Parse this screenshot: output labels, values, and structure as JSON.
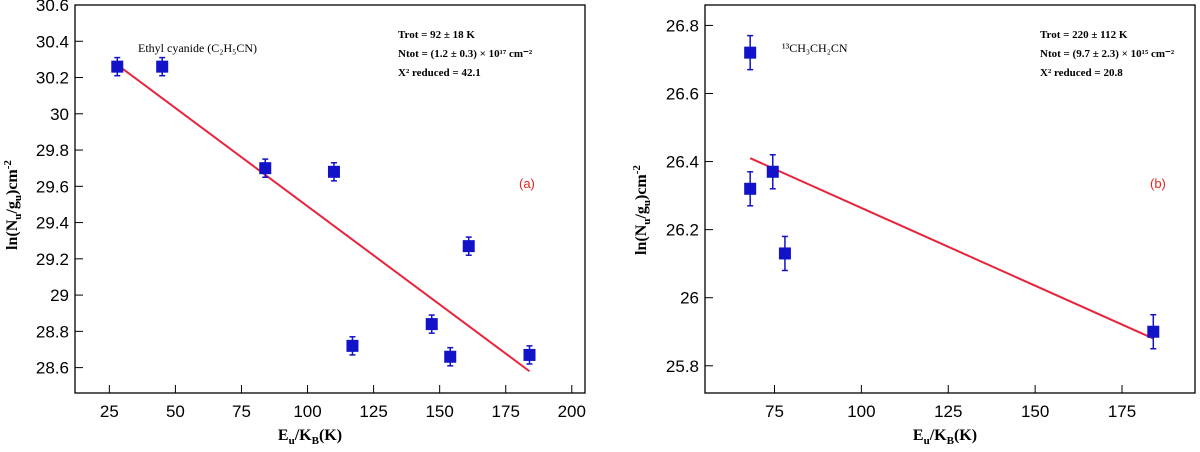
{
  "chart_data": [
    {
      "type": "scatter",
      "panel_label": "(a)",
      "species_label": "Ethyl cyanide (C₂H₅CN)",
      "fit_text": [
        "Trot =  92 ± 18  K",
        "Ntot = (1.2 ± 0.3) × 10¹⁷ cm⁻²",
        "X² reduced = 42.1"
      ],
      "xlabel": "Eu/KB(K)",
      "ylabel": "ln(Nu/gu)cm⁻²",
      "xlim": [
        12,
        205
      ],
      "ylim": [
        28.46,
        30.6
      ],
      "xticks": [
        25,
        50,
        75,
        100,
        125,
        150,
        175,
        200
      ],
      "yticks": [
        28.6,
        28.8,
        29,
        29.2,
        29.4,
        29.6,
        29.8,
        30,
        30.2,
        30.4,
        30.6
      ],
      "xtick_labels": [
        "25",
        "50",
        "75",
        "100",
        "125",
        "150",
        "175",
        "200"
      ],
      "ytick_labels": [
        "28.6",
        "28.8",
        "29",
        "29.2",
        "29.4",
        "29.6",
        "29.8",
        "30",
        "30.2",
        "30.4",
        "30.6"
      ],
      "points": [
        {
          "x": 28,
          "y": 30.26,
          "err": 0.05
        },
        {
          "x": 45,
          "y": 30.26,
          "err": 0.05
        },
        {
          "x": 84,
          "y": 29.7,
          "err": 0.05
        },
        {
          "x": 110,
          "y": 29.68,
          "err": 0.05
        },
        {
          "x": 117,
          "y": 28.72,
          "err": 0.05
        },
        {
          "x": 147,
          "y": 28.84,
          "err": 0.05
        },
        {
          "x": 154,
          "y": 28.66,
          "err": 0.05
        },
        {
          "x": 161,
          "y": 29.27,
          "err": 0.05
        },
        {
          "x": 184,
          "y": 28.67,
          "err": 0.05
        }
      ],
      "fit_line": {
        "x": [
          28,
          184
        ],
        "y": [
          30.27,
          28.58
        ]
      },
      "colors": {
        "points": "#1212c8",
        "fit": "#e8243c",
        "label": "#e8241c"
      }
    },
    {
      "type": "scatter",
      "panel_label": "(b)",
      "species_label": "¹³CH₃CH₂CN",
      "fit_text": [
        "Trot =  220 ± 112  K",
        "Ntot = (9.7 ± 2.3) × 10¹⁵ cm⁻²",
        "X² reduced = 20.8"
      ],
      "xlabel": "Eu/KB(K)",
      "ylabel": "ln(Nu/gu)cm⁻²",
      "xlim": [
        55,
        196
      ],
      "ylim": [
        25.72,
        26.86
      ],
      "xticks": [
        75,
        100,
        125,
        150,
        175
      ],
      "yticks": [
        25.8,
        26,
        26.2,
        26.4,
        26.6,
        26.8
      ],
      "xtick_labels": [
        "75",
        "100",
        "125",
        "150",
        "175"
      ],
      "ytick_labels": [
        "25.8",
        "26",
        "26.2",
        "26.4",
        "26.6",
        "26.8"
      ],
      "points": [
        {
          "x": 68,
          "y": 26.72,
          "err": 0.05
        },
        {
          "x": 68,
          "y": 26.32,
          "err": 0.05
        },
        {
          "x": 74.5,
          "y": 26.37,
          "err": 0.05
        },
        {
          "x": 78,
          "y": 26.13,
          "err": 0.05
        },
        {
          "x": 184,
          "y": 25.9,
          "err": 0.05
        }
      ],
      "fit_line": {
        "x": [
          68,
          184
        ],
        "y": [
          26.41,
          25.88
        ]
      },
      "colors": {
        "points": "#1212c8",
        "fit": "#e8243c",
        "label": "#e8241c"
      }
    }
  ]
}
